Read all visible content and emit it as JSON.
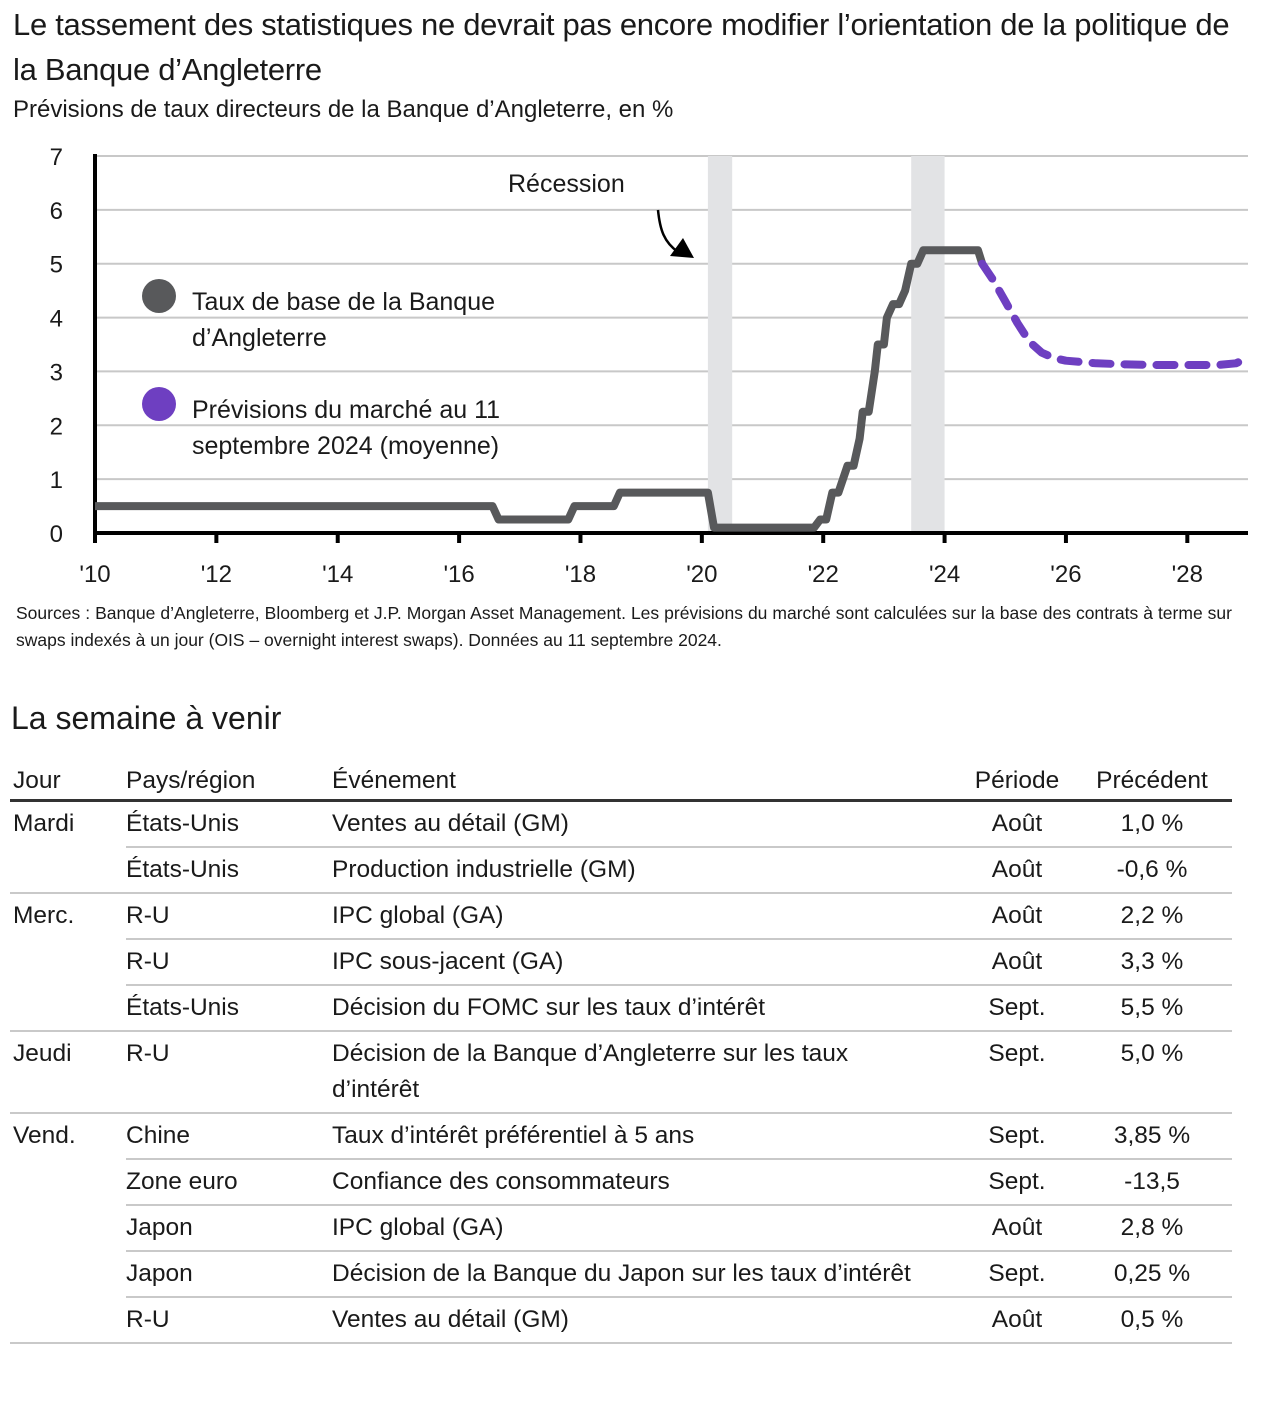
{
  "header": {
    "title": "Le tassement des statistiques ne devrait pas encore modifier l’orientation de la politique de la Banque d’Angleterre",
    "subtitle": "Prévisions de taux directeurs de la Banque d’Angleterre, en %"
  },
  "chart_data": {
    "type": "line",
    "title": "Le tassement des statistiques ne devrait pas encore modifier l’orientation de la politique de la Banque d’Angleterre",
    "subtitle": "Prévisions de taux directeurs de la Banque d’Angleterre, en %",
    "xlabel": "",
    "ylabel": "%",
    "xlim": [
      2010,
      2029
    ],
    "ylim": [
      0,
      7
    ],
    "grid": true,
    "x_ticks": [
      2010,
      2012,
      2014,
      2016,
      2018,
      2020,
      2022,
      2024,
      2026,
      2028
    ],
    "x_tick_labels": [
      "'10",
      "'12",
      "'14",
      "'16",
      "'18",
      "'20",
      "'22",
      "'24",
      "'26",
      "'28"
    ],
    "y_ticks": [
      0,
      1,
      2,
      3,
      4,
      5,
      6,
      7
    ],
    "y_tick_labels": [
      "0",
      "1",
      "2",
      "3",
      "4",
      "5",
      "6",
      "7"
    ],
    "legend_position": "left",
    "annotation": {
      "text": "Récession",
      "points_to": "recession-2020"
    },
    "recessions": [
      {
        "start": 2020.1,
        "end": 2020.5
      },
      {
        "start": 2023.45,
        "end": 2024.0
      }
    ],
    "series": [
      {
        "name": "Taux de base de la Banque d’Angleterre",
        "color": "#58595b",
        "style": "solid",
        "points": [
          [
            2010.0,
            0.5
          ],
          [
            2016.55,
            0.5
          ],
          [
            2016.65,
            0.25
          ],
          [
            2017.8,
            0.25
          ],
          [
            2017.9,
            0.5
          ],
          [
            2018.55,
            0.5
          ],
          [
            2018.65,
            0.75
          ],
          [
            2020.1,
            0.75
          ],
          [
            2020.2,
            0.1
          ],
          [
            2021.85,
            0.1
          ],
          [
            2021.95,
            0.25
          ],
          [
            2022.05,
            0.25
          ],
          [
            2022.15,
            0.75
          ],
          [
            2022.25,
            0.75
          ],
          [
            2022.4,
            1.25
          ],
          [
            2022.5,
            1.25
          ],
          [
            2022.6,
            1.75
          ],
          [
            2022.65,
            2.25
          ],
          [
            2022.75,
            2.25
          ],
          [
            2022.85,
            3.0
          ],
          [
            2022.9,
            3.5
          ],
          [
            2023.0,
            3.5
          ],
          [
            2023.05,
            4.0
          ],
          [
            2023.15,
            4.25
          ],
          [
            2023.25,
            4.25
          ],
          [
            2023.35,
            4.5
          ],
          [
            2023.45,
            5.0
          ],
          [
            2023.55,
            5.0
          ],
          [
            2023.65,
            5.25
          ],
          [
            2024.55,
            5.25
          ],
          [
            2024.62,
            5.0
          ]
        ]
      },
      {
        "name": "Prévisions du marché au 11 septembre 2024 (moyenne)",
        "color": "#6e3fc1",
        "style": "dashed",
        "points": [
          [
            2024.62,
            5.0
          ],
          [
            2024.8,
            4.7
          ],
          [
            2025.0,
            4.3
          ],
          [
            2025.2,
            3.9
          ],
          [
            2025.4,
            3.55
          ],
          [
            2025.6,
            3.35
          ],
          [
            2025.8,
            3.25
          ],
          [
            2026.0,
            3.2
          ],
          [
            2026.5,
            3.15
          ],
          [
            2027.0,
            3.13
          ],
          [
            2027.5,
            3.12
          ],
          [
            2028.0,
            3.12
          ],
          [
            2028.5,
            3.12
          ],
          [
            2028.8,
            3.15
          ],
          [
            2029.0,
            3.25
          ]
        ]
      }
    ]
  },
  "legend": [
    {
      "label_line1": "Taux de base de la Banque",
      "label_line2": "d’Angleterre",
      "color": "#58595b"
    },
    {
      "label_line1": "Prévisions du marché au 11",
      "label_line2": "septembre 2024 (moyenne)",
      "color": "#6e3fc1"
    }
  ],
  "sources": "Sources : Banque d’Angleterre, Bloomberg et J.P. Morgan Asset Management. Les prévisions du marché sont calculées sur la base des contrats à terme sur swaps indexés à un jour (OIS – overnight interest swaps). Données au 11 septembre 2024.",
  "week": {
    "title": "La semaine à venir",
    "columns": [
      "Jour",
      "Pays/région",
      "Événement",
      "Période",
      "Précédent"
    ],
    "rows": [
      {
        "day": "Mardi",
        "country": "États-Unis",
        "event": "Ventes au détail (GM)",
        "period": "Août",
        "previous": "1,0 %"
      },
      {
        "day": "",
        "country": "États-Unis",
        "event": "Production industrielle (GM)",
        "period": "Août",
        "previous": "-0,6 %"
      },
      {
        "day": "Merc.",
        "country": "R-U",
        "event": "IPC global (GA)",
        "period": "Août",
        "previous": "2,2 %"
      },
      {
        "day": "",
        "country": "R-U",
        "event": "IPC sous-jacent (GA)",
        "period": "Août",
        "previous": "3,3 %"
      },
      {
        "day": "",
        "country": "États-Unis",
        "event": "Décision du FOMC sur les taux d’intérêt",
        "period": "Sept.",
        "previous": "5,5 %"
      },
      {
        "day": "Jeudi",
        "country": "R-U",
        "event": "Décision de la Banque d’Angleterre sur les taux d’intérêt",
        "period": "Sept.",
        "previous": "5,0 %"
      },
      {
        "day": "Vend.",
        "country": "Chine",
        "event": "Taux d’intérêt préférentiel à 5 ans",
        "period": "Sept.",
        "previous": "3,85 %"
      },
      {
        "day": "",
        "country": "Zone euro",
        "event": "Confiance des consommateurs",
        "period": "Sept.",
        "previous": "-13,5"
      },
      {
        "day": "",
        "country": "Japon",
        "event": "IPC global (GA)",
        "period": "Août",
        "previous": "2,8 %"
      },
      {
        "day": "",
        "country": "Japon",
        "event": "Décision de la Banque du Japon sur les taux d’intérêt",
        "period": "Sept.",
        "previous": "0,25 %"
      },
      {
        "day": "",
        "country": "R-U",
        "event": "Ventes au détail (GM)",
        "period": "Août",
        "previous": "0,5 %"
      }
    ]
  }
}
